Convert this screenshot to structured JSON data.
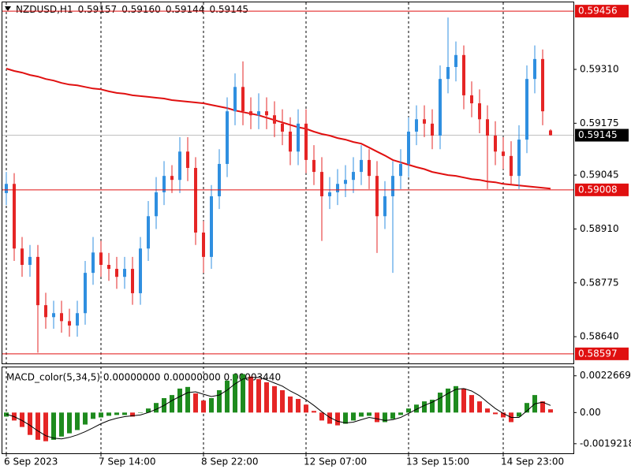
{
  "chart_data": {
    "type": "candlestick",
    "header": {
      "symbol": "NZDUSD,H1",
      "ohlc": [
        "0.59157",
        "0.59160",
        "0.59144",
        "0.59145"
      ]
    },
    "ylim": [
      0.58573,
      0.59478
    ],
    "yticks": [
      {
        "value": 0.5931,
        "label": "0.59310"
      },
      0.59175,
      0.59045,
      {
        "value": 0.5891,
        "label": "0.58910"
      },
      0.58775,
      {
        "value": 0.5864,
        "label": "0.58640"
      }
    ],
    "price_lines": [
      0.59456,
      0.59008,
      0.58597
    ],
    "price_line_color": "#e01010",
    "current_price": 0.59145,
    "current_line_color": "#c0c0c0",
    "up_color": "#2f8fe0",
    "down_color": "#e52525",
    "ma_color": "#e01010",
    "categories": [
      "6 Sep 2023",
      null,
      null,
      null,
      null,
      null,
      null,
      null,
      null,
      null,
      null,
      null,
      "7 Sep 14:00",
      null,
      null,
      null,
      null,
      null,
      null,
      null,
      null,
      null,
      null,
      null,
      null,
      "8 Sep 22:00",
      null,
      null,
      null,
      null,
      null,
      null,
      null,
      null,
      null,
      null,
      null,
      null,
      "12 Sep 07:00",
      null,
      null,
      null,
      null,
      null,
      null,
      null,
      null,
      null,
      null,
      null,
      null,
      "13 Sep 15:00",
      null,
      null,
      null,
      null,
      null,
      null,
      null,
      null,
      null,
      null,
      null,
      "14 Sep 23:00",
      null,
      null,
      null,
      null,
      null,
      null
    ],
    "candles": {
      "open": [
        0.59,
        0.59023,
        0.58861,
        0.5882,
        0.5884,
        0.58719,
        0.58689,
        0.58699,
        0.58679,
        0.58668,
        0.58699,
        0.588,
        0.58851,
        0.5882,
        0.5881,
        0.5879,
        0.5881,
        0.58749,
        0.58861,
        0.58942,
        0.59002,
        0.59043,
        0.59033,
        0.59104,
        0.59063,
        0.58901,
        0.5884,
        0.58992,
        0.59073,
        0.59205,
        0.59266,
        0.59205,
        0.59195,
        0.59205,
        0.59195,
        0.59174,
        0.59154,
        0.59104,
        0.59174,
        0.59083,
        0.59053,
        0.58992,
        0.59002,
        0.59023,
        0.59033,
        0.59053,
        0.59083,
        0.59043,
        0.58942,
        0.58992,
        0.59043,
        0.59073,
        0.59154,
        0.59185,
        0.59174,
        0.59144,
        0.59286,
        0.59316,
        0.59346,
        0.59245,
        0.59225,
        0.59185,
        0.59144,
        0.59104,
        0.59093,
        0.59043,
        0.59134,
        0.59286,
        0.59336,
        0.59157
      ],
      "high": [
        0.59053,
        0.5905,
        0.5889,
        0.5887,
        0.5887,
        0.5875,
        0.5873,
        0.5873,
        0.5871,
        0.5873,
        0.5883,
        0.5889,
        0.5888,
        0.5885,
        0.5884,
        0.5884,
        0.5884,
        0.5889,
        0.5898,
        0.5904,
        0.5908,
        0.5907,
        0.5914,
        0.5914,
        0.5909,
        0.5893,
        0.5902,
        0.5911,
        0.5924,
        0.593,
        0.5933,
        0.5924,
        0.5925,
        0.5924,
        0.5923,
        0.5921,
        0.5919,
        0.5921,
        0.5921,
        0.5912,
        0.5909,
        0.5904,
        0.5906,
        0.5907,
        0.5909,
        0.5912,
        0.5911,
        0.5908,
        0.5903,
        0.5908,
        0.5911,
        0.5919,
        0.5922,
        0.5922,
        0.5921,
        0.5932,
        0.5944,
        0.5938,
        0.5937,
        0.5928,
        0.5926,
        0.5922,
        0.5918,
        0.5914,
        0.5913,
        0.5917,
        0.5932,
        0.5937,
        0.5936,
        0.5916
      ],
      "low": [
        0.5897,
        0.5883,
        0.5879,
        0.5879,
        0.586,
        0.5866,
        0.5866,
        0.5865,
        0.5864,
        0.5864,
        0.5867,
        0.5877,
        0.5879,
        0.5878,
        0.5876,
        0.5876,
        0.5872,
        0.5872,
        0.5883,
        0.5891,
        0.5897,
        0.59,
        0.59,
        0.5903,
        0.5887,
        0.588,
        0.5881,
        0.5896,
        0.5904,
        0.5917,
        0.5917,
        0.5916,
        0.5916,
        0.5916,
        0.5914,
        0.5912,
        0.5907,
        0.5907,
        0.5905,
        0.5902,
        0.5888,
        0.5896,
        0.5897,
        0.5899,
        0.59,
        0.5902,
        0.5901,
        0.5885,
        0.5891,
        0.588,
        0.5901,
        0.5904,
        0.5912,
        0.5914,
        0.5911,
        0.5911,
        0.5925,
        0.5928,
        0.5921,
        0.5919,
        0.5915,
        0.5901,
        0.5907,
        0.5906,
        0.5902,
        0.5901,
        0.591,
        0.5925,
        0.5917,
        0.59144
      ],
      "close": [
        0.59023,
        0.58861,
        0.5882,
        0.5884,
        0.58719,
        0.58689,
        0.58699,
        0.58679,
        0.58668,
        0.58699,
        0.588,
        0.58851,
        0.5882,
        0.5881,
        0.5879,
        0.5881,
        0.58749,
        0.58861,
        0.58942,
        0.59002,
        0.59043,
        0.59033,
        0.59104,
        0.59063,
        0.58901,
        0.5884,
        0.58992,
        0.59073,
        0.59205,
        0.59266,
        0.59205,
        0.59195,
        0.59205,
        0.59195,
        0.59174,
        0.59154,
        0.59104,
        0.59174,
        0.59083,
        0.59053,
        0.58992,
        0.59002,
        0.59023,
        0.59033,
        0.59053,
        0.59083,
        0.59043,
        0.58942,
        0.58992,
        0.59043,
        0.59073,
        0.59154,
        0.59185,
        0.59174,
        0.59144,
        0.59286,
        0.59316,
        0.59346,
        0.59245,
        0.59225,
        0.59185,
        0.59144,
        0.59104,
        0.59093,
        0.59043,
        0.59134,
        0.59286,
        0.59336,
        0.59205,
        0.59145
      ]
    },
    "ma": [
      0.59312,
      0.59306,
      0.59302,
      0.59296,
      0.59292,
      0.59286,
      0.59282,
      0.59276,
      0.59272,
      0.5927,
      0.59266,
      0.59262,
      0.5926,
      0.59255,
      0.59251,
      0.59249,
      0.59245,
      0.59243,
      0.59241,
      0.59239,
      0.59237,
      0.59233,
      0.59231,
      0.59229,
      0.59227,
      0.59225,
      0.59221,
      0.59217,
      0.59213,
      0.59207,
      0.59203,
      0.59199,
      0.59195,
      0.59189,
      0.59183,
      0.59177,
      0.59171,
      0.59165,
      0.59161,
      0.59154,
      0.59148,
      0.59144,
      0.59138,
      0.59134,
      0.59128,
      0.59124,
      0.59114,
      0.59104,
      0.59094,
      0.59083,
      0.59077,
      0.59071,
      0.59065,
      0.5906,
      0.59053,
      0.59049,
      0.59045,
      0.59043,
      0.59039,
      0.59035,
      0.59033,
      0.59029,
      0.59027,
      0.59023,
      0.59021,
      0.59019,
      0.59017,
      0.59015,
      0.59013,
      0.59011
    ],
    "macd": {
      "title": "MACD_color(5,34,5) 0.00000000 0.00000000 0.00003440",
      "ylim": [
        -0.0025133,
        0.002788
      ],
      "yticks": [
        0.0022669,
        {
          "value": 0,
          "label": "0.00"
        },
        -0.0019218
      ],
      "up_color": "#1e8b1e",
      "down_color": "#e52525",
      "signal_color": "#000000",
      "values": [
        -0.00025,
        -0.00049,
        -0.00089,
        -0.00138,
        -0.00168,
        -0.00177,
        -0.00168,
        -0.00148,
        -0.00128,
        -0.00108,
        -0.00074,
        -0.00039,
        -0.0003,
        -0.0002,
        -0.00015,
        -0.00015,
        -0.00025,
        0,
        0.00025,
        0.00059,
        0.00089,
        0.00108,
        0.00148,
        0.00158,
        0.00118,
        0.00074,
        0.00089,
        0.00138,
        0.00197,
        0.00237,
        0.00237,
        0.00222,
        0.00207,
        0.00187,
        0.00163,
        0.00138,
        0.00099,
        0.00084,
        0.00049,
        0.0001,
        -0.00049,
        -0.00069,
        -0.00079,
        -0.00069,
        -0.00049,
        -0.00025,
        -0.0002,
        -0.00059,
        -0.00059,
        -0.00039,
        -0.00015,
        0.00025,
        0.00049,
        0.00069,
        0.00079,
        0.00123,
        0.00148,
        0.00163,
        0.00148,
        0.00108,
        0.00069,
        0.00025,
        -0.0001,
        -0.0003,
        -0.00059,
        -0.00025,
        0.00059,
        0.00108,
        0.00069,
        0.0002
      ],
      "signal": [
        -0.0001,
        -0.00025,
        -0.00049,
        -0.00079,
        -0.00113,
        -0.00143,
        -0.00158,
        -0.00163,
        -0.00153,
        -0.00138,
        -0.00118,
        -0.00094,
        -0.00069,
        -0.00049,
        -0.00035,
        -0.00025,
        -0.0002,
        -0.00015,
        0,
        0.0002,
        0.00044,
        0.00074,
        0.00099,
        0.00123,
        0.00128,
        0.00113,
        0.00099,
        0.00108,
        0.00138,
        0.00177,
        0.00207,
        0.00217,
        0.00217,
        0.00202,
        0.00182,
        0.00163,
        0.00133,
        0.00108,
        0.00079,
        0.00044,
        5e-05,
        -0.0003,
        -0.00054,
        -0.00064,
        -0.00059,
        -0.00044,
        -0.0003,
        -0.00039,
        -0.00049,
        -0.00044,
        -0.0003,
        -5e-05,
        0.0002,
        0.00044,
        0.00064,
        0.00089,
        0.00118,
        0.00143,
        0.00148,
        0.00133,
        0.00104,
        0.00064,
        0.00025,
        -5e-05,
        -0.0003,
        -0.0003,
        0.0001,
        0.00054,
        0.00064,
        0.00044
      ]
    }
  }
}
